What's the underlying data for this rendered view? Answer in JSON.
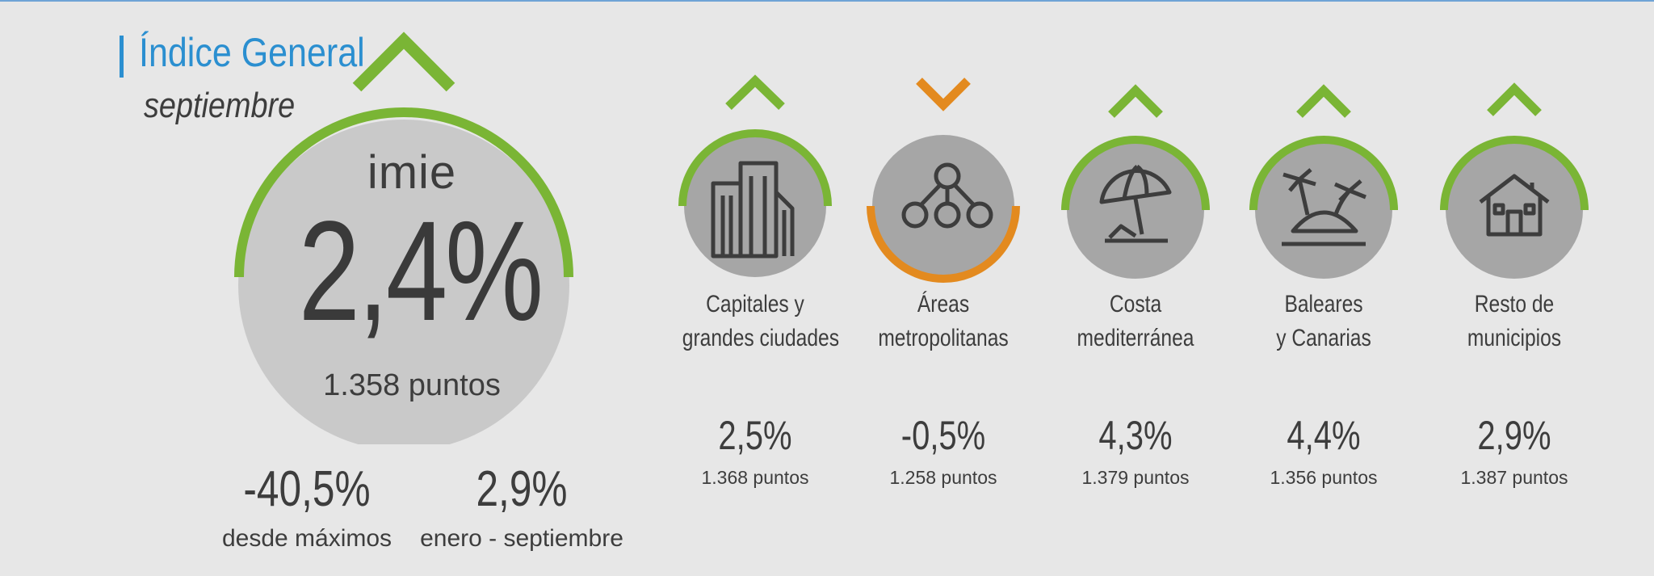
{
  "header": {
    "title": "Índice General",
    "period": "septiembre"
  },
  "colors": {
    "up": "#7ab535",
    "down": "#e38a1f",
    "title": "#2b8fd0",
    "circle": "#c9c9c9",
    "icon_circle": "#a6a6a6"
  },
  "main": {
    "brand": "imie",
    "trend": "up",
    "value": "2,4%",
    "points": "1.358 puntos",
    "stats": [
      {
        "value": "-40,5%",
        "label": "desde máximos"
      },
      {
        "value": "2,9%",
        "label": "enero - septiembre"
      }
    ]
  },
  "regions": [
    {
      "name_line1": "Capitales y",
      "name_line2": "grandes ciudades",
      "value": "2,5%",
      "points": "1.368 puntos",
      "trend": "up",
      "icon": "buildings-icon"
    },
    {
      "name_line1": "Áreas",
      "name_line2": "metropolitanas",
      "value": "-0,5%",
      "points": "1.258 puntos",
      "trend": "down",
      "icon": "network-icon"
    },
    {
      "name_line1": "Costa",
      "name_line2": "mediterránea",
      "value": "4,3%",
      "points": "1.379 puntos",
      "trend": "up",
      "icon": "beach-umbrella-icon"
    },
    {
      "name_line1": "Baleares",
      "name_line2": "y Canarias",
      "value": "4,4%",
      "points": "1.356 puntos",
      "trend": "up",
      "icon": "palm-island-icon"
    },
    {
      "name_line1": "Resto de",
      "name_line2": "municipios",
      "value": "2,9%",
      "points": "1.387 puntos",
      "trend": "up",
      "icon": "house-icon"
    }
  ]
}
